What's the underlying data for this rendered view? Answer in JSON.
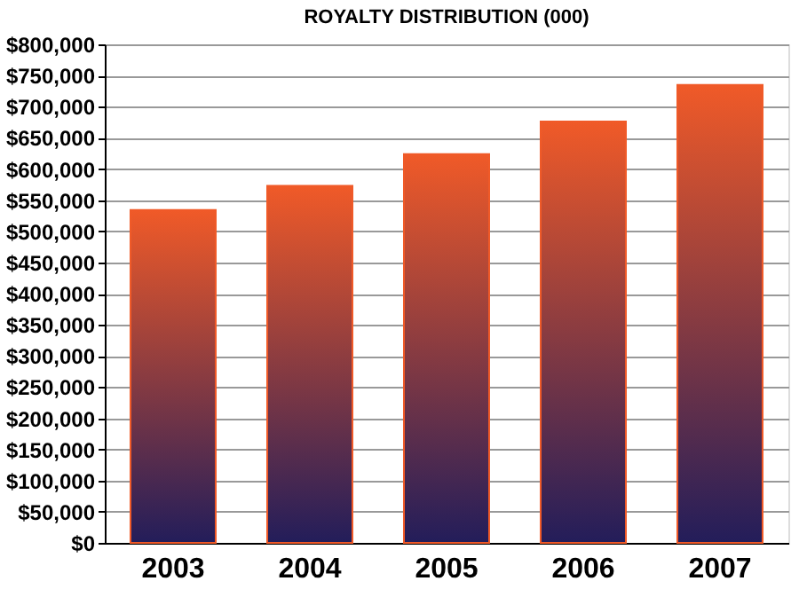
{
  "chart_data": {
    "type": "bar",
    "title": "ROYALTY DISTRIBUTION (000)",
    "categories": [
      "2003",
      "2004",
      "2005",
      "2006",
      "2007"
    ],
    "values": [
      534000,
      573000,
      624000,
      676000,
      735000
    ],
    "color": "#f05a28",
    "ylim": [
      0,
      800000
    ],
    "yticks": [
      {
        "value": 0,
        "label": "$0"
      },
      {
        "value": 50000,
        "label": "$50,000"
      },
      {
        "value": 100000,
        "label": "$100,000"
      },
      {
        "value": 150000,
        "label": "$150,000"
      },
      {
        "value": 200000,
        "label": "$200,000"
      },
      {
        "value": 250000,
        "label": "$250,000"
      },
      {
        "value": 300000,
        "label": "$300,000"
      },
      {
        "value": 350000,
        "label": "$350,000"
      },
      {
        "value": 400000,
        "label": "$400,000"
      },
      {
        "value": 450000,
        "label": "$450,000"
      },
      {
        "value": 500000,
        "label": "$500,000"
      },
      {
        "value": 550000,
        "label": "$550,000"
      },
      {
        "value": 600000,
        "label": "$600,000"
      },
      {
        "value": 650000,
        "label": "$650,000"
      },
      {
        "value": 700000,
        "label": "$700,000"
      },
      {
        "value": 750000,
        "label": "$750,000"
      },
      {
        "value": 800000,
        "label": "$800,000"
      }
    ],
    "grid": "y"
  }
}
